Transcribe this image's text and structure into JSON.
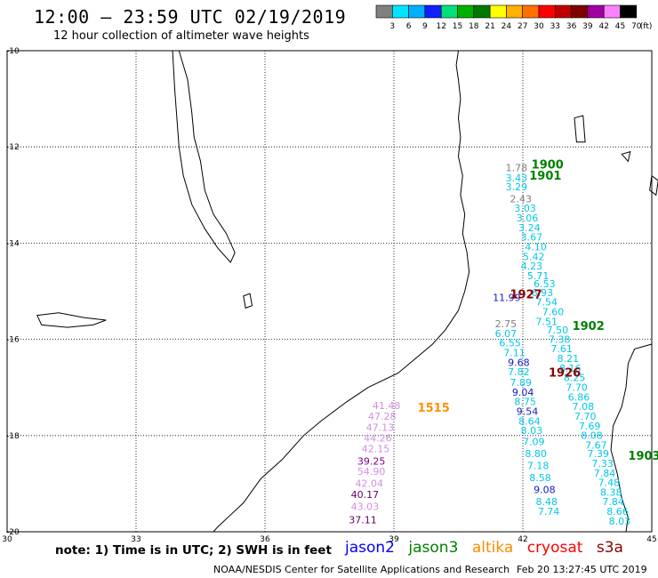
{
  "header": {
    "title": "12:00 – 23:59 UTC 02/19/2019",
    "subtitle": "12 hour collection of altimeter wave heights"
  },
  "colorbar": {
    "unit_label": "(ft)",
    "ticks": [
      "3",
      "6",
      "9",
      "12",
      "15",
      "18",
      "21",
      "24",
      "27",
      "30",
      "33",
      "36",
      "39",
      "42",
      "45",
      "70"
    ],
    "colors": [
      "#808080",
      "#00e5ff",
      "#00b0ff",
      "#1020ff",
      "#00e07a",
      "#00b000",
      "#007800",
      "#ffff00",
      "#ffb000",
      "#ff7000",
      "#ff0000",
      "#c00000",
      "#800000",
      "#a000a0",
      "#ff80ff",
      "#000000"
    ]
  },
  "axes": {
    "lat_labels": [
      "-10",
      "-12",
      "-14",
      "-16",
      "-18",
      "-20"
    ],
    "lon_labels": [
      "30",
      "33",
      "36",
      "39",
      "42",
      "45"
    ]
  },
  "tracks": [
    {
      "id": "track-1900-1901",
      "color": "#00c0e0",
      "values": [
        "1.78",
        "3.43",
        "3.29",
        "2.43",
        "3.03",
        "3.06",
        "3.24",
        "3.67",
        "4.10",
        "5.42",
        "4.23",
        "5.71",
        "6.53",
        "6.93",
        "7.54",
        "7.60",
        "7.51",
        "7.50",
        "7.38",
        "7.61",
        "8.21",
        "8.16",
        "8.25",
        "7.70",
        "6.86",
        "7.08",
        "7.70",
        "7.69",
        "8.08",
        "7.67",
        "7.39",
        "7.33",
        "7.84",
        "7.48",
        "8.38",
        "7.84",
        "8.66",
        "8.03"
      ]
    },
    {
      "id": "track-1927-1926",
      "color": "#1020c0",
      "values": [
        "11.99",
        "2.75",
        "6.07",
        "6.55",
        "7.11",
        "9.68",
        "7.82",
        "7.89",
        "9.04",
        "8.75",
        "9.54",
        "8.64",
        "8.03",
        "7.09",
        "8.80",
        "7.18",
        "8.58",
        "9.08",
        "8.48",
        "7.74"
      ]
    },
    {
      "id": "track-1515",
      "color": "#c080e0",
      "values": [
        "41.48",
        "47.28",
        "47.13",
        "44.26",
        "42.15",
        "39.25",
        "54.90",
        "42.04",
        "40.17",
        "43.03",
        "37.11"
      ]
    }
  ],
  "point_labels": [
    {
      "text": "1.78",
      "color": "#808080",
      "lon": 41.6,
      "lat": -12.5
    },
    {
      "text": "3.43",
      "color": "#00c8e8",
      "lon": 41.6,
      "lat": -12.72
    },
    {
      "text": "3.29",
      "color": "#00c8e8",
      "lon": 41.6,
      "lat": -12.9
    },
    {
      "text": "2.43",
      "color": "#808080",
      "lon": 41.7,
      "lat": -13.15
    },
    {
      "text": "3.03",
      "color": "#00c8e8",
      "lon": 41.8,
      "lat": -13.35
    },
    {
      "text": "3.06",
      "color": "#00c8e8",
      "lon": 41.85,
      "lat": -13.55
    },
    {
      "text": "3.24",
      "color": "#00c8e8",
      "lon": 41.9,
      "lat": -13.75
    },
    {
      "text": "3.67",
      "color": "#00c8e8",
      "lon": 41.95,
      "lat": -13.95
    },
    {
      "text": "4.10",
      "color": "#00c8e8",
      "lon": 42.05,
      "lat": -14.15
    },
    {
      "text": "5.42",
      "color": "#00c8e8",
      "lon": 42.0,
      "lat": -14.35
    },
    {
      "text": "4.23",
      "color": "#00c8e8",
      "lon": 41.95,
      "lat": -14.55
    },
    {
      "text": "5.71",
      "color": "#00c8e8",
      "lon": 42.1,
      "lat": -14.75
    },
    {
      "text": "6.53",
      "color": "#00c8e8",
      "lon": 42.25,
      "lat": -14.92
    },
    {
      "text": "6.93",
      "color": "#00c8e8",
      "lon": 42.2,
      "lat": -15.1
    },
    {
      "text": "7.54",
      "color": "#00c8e8",
      "lon": 42.3,
      "lat": -15.3
    },
    {
      "text": "7.60",
      "color": "#00c8e8",
      "lon": 42.45,
      "lat": -15.5
    },
    {
      "text": "7.51",
      "color": "#00c8e8",
      "lon": 42.3,
      "lat": -15.7
    },
    {
      "text": "7.50",
      "color": "#00c8e8",
      "lon": 42.55,
      "lat": -15.88
    },
    {
      "text": "7.38",
      "color": "#00c8e8",
      "lon": 42.6,
      "lat": -16.07
    },
    {
      "text": "7.61",
      "color": "#00c8e8",
      "lon": 42.65,
      "lat": -16.27
    },
    {
      "text": "8.21",
      "color": "#00c8e8",
      "lon": 42.8,
      "lat": -16.47
    },
    {
      "text": "8.16",
      "color": "#00c8e8",
      "lon": 42.85,
      "lat": -16.67
    },
    {
      "text": "8.25",
      "color": "#00c8e8",
      "lon": 42.95,
      "lat": -16.87
    },
    {
      "text": "7.70",
      "color": "#00c8e8",
      "lon": 43.0,
      "lat": -17.07
    },
    {
      "text": "6.86",
      "color": "#00c8e8",
      "lon": 43.05,
      "lat": -17.27
    },
    {
      "text": "7.08",
      "color": "#00c8e8",
      "lon": 43.15,
      "lat": -17.47
    },
    {
      "text": "7.70",
      "color": "#00c8e8",
      "lon": 43.2,
      "lat": -17.67
    },
    {
      "text": "7.69",
      "color": "#00c8e8",
      "lon": 43.3,
      "lat": -17.87
    },
    {
      "text": "8.08",
      "color": "#00c8e8",
      "lon": 43.35,
      "lat": -18.07
    },
    {
      "text": "7.67",
      "color": "#00c8e8",
      "lon": 43.45,
      "lat": -18.27
    },
    {
      "text": "7.39",
      "color": "#00c8e8",
      "lon": 43.5,
      "lat": -18.45
    },
    {
      "text": "7.33",
      "color": "#00c8e8",
      "lon": 43.6,
      "lat": -18.65
    },
    {
      "text": "7.84",
      "color": "#00c8e8",
      "lon": 43.65,
      "lat": -18.85
    },
    {
      "text": "7.48",
      "color": "#00c8e8",
      "lon": 43.75,
      "lat": -19.05
    },
    {
      "text": "8.38",
      "color": "#00c8e8",
      "lon": 43.8,
      "lat": -19.25
    },
    {
      "text": "7.84",
      "color": "#00c8e8",
      "lon": 43.85,
      "lat": -19.45
    },
    {
      "text": "8.66",
      "color": "#00c8e8",
      "lon": 43.95,
      "lat": -19.65
    },
    {
      "text": "8.03",
      "color": "#00c8e8",
      "lon": 44.0,
      "lat": -19.85
    },
    {
      "text": "11.99",
      "color": "#1020c0",
      "lon": 41.3,
      "lat": -15.2
    },
    {
      "text": "2.75",
      "color": "#808080",
      "lon": 41.35,
      "lat": -15.75
    },
    {
      "text": "6.07",
      "color": "#00c8e8",
      "lon": 41.35,
      "lat": -15.95
    },
    {
      "text": "6.55",
      "color": "#00c8e8",
      "lon": 41.45,
      "lat": -16.15
    },
    {
      "text": "7.11",
      "color": "#00c8e8",
      "lon": 41.55,
      "lat": -16.35
    },
    {
      "text": "9.68",
      "color": "#1020c0",
      "lon": 41.65,
      "lat": -16.55
    },
    {
      "text": "7.82",
      "color": "#00c8e8",
      "lon": 41.65,
      "lat": -16.75
    },
    {
      "text": "7.89",
      "color": "#00c8e8",
      "lon": 41.7,
      "lat": -16.97
    },
    {
      "text": "9.04",
      "color": "#1020c0",
      "lon": 41.75,
      "lat": -17.17
    },
    {
      "text": "8.75",
      "color": "#00c8e8",
      "lon": 41.8,
      "lat": -17.37
    },
    {
      "text": "9.54",
      "color": "#1020c0",
      "lon": 41.85,
      "lat": -17.57
    },
    {
      "text": "8.64",
      "color": "#00c8e8",
      "lon": 41.9,
      "lat": -17.77
    },
    {
      "text": "8.03",
      "color": "#00c8e8",
      "lon": 41.95,
      "lat": -17.97
    },
    {
      "text": "7.09",
      "color": "#00c8e8",
      "lon": 42.0,
      "lat": -18.2
    },
    {
      "text": "8.80",
      "color": "#00c8e8",
      "lon": 42.05,
      "lat": -18.45
    },
    {
      "text": "7.18",
      "color": "#00c8e8",
      "lon": 42.1,
      "lat": -18.7
    },
    {
      "text": "8.58",
      "color": "#00c8e8",
      "lon": 42.15,
      "lat": -18.95
    },
    {
      "text": "9.08",
      "color": "#1020c0",
      "lon": 42.25,
      "lat": -19.2
    },
    {
      "text": "8.48",
      "color": "#00c8e8",
      "lon": 42.3,
      "lat": -19.45
    },
    {
      "text": "7.74",
      "color": "#00c8e8",
      "lon": 42.35,
      "lat": -19.65
    },
    {
      "text": "41.48",
      "color": "#d090e0",
      "lon": 38.5,
      "lat": -17.45
    },
    {
      "text": "47.28",
      "color": "#d090e0",
      "lon": 38.4,
      "lat": -17.67
    },
    {
      "text": "47.13",
      "color": "#d090e0",
      "lon": 38.35,
      "lat": -17.9
    },
    {
      "text": "44.26",
      "color": "#d090e0",
      "lon": 38.3,
      "lat": -18.12
    },
    {
      "text": "42.15",
      "color": "#d090e0",
      "lon": 38.25,
      "lat": -18.35
    },
    {
      "text": "39.25",
      "color": "#800080",
      "lon": 38.15,
      "lat": -18.6
    },
    {
      "text": "54.90",
      "color": "#d090e0",
      "lon": 38.15,
      "lat": -18.82
    },
    {
      "text": "42.04",
      "color": "#d090e0",
      "lon": 38.1,
      "lat": -19.07
    },
    {
      "text": "40.17",
      "color": "#600060",
      "lon": 38.0,
      "lat": -19.3
    },
    {
      "text": "43.03",
      "color": "#d090e0",
      "lon": 38.0,
      "lat": -19.55
    },
    {
      "text": "37.11",
      "color": "#600060",
      "lon": 37.95,
      "lat": -19.82
    }
  ],
  "time_labels": [
    {
      "text": "1900",
      "color": "#008000",
      "lon": 42.2,
      "lat": -12.45
    },
    {
      "text": "1901",
      "color": "#008000",
      "lon": 42.15,
      "lat": -12.68
    },
    {
      "text": "1927",
      "color": "#8b0000",
      "lon": 41.7,
      "lat": -15.15
    },
    {
      "text": "1902",
      "color": "#008000",
      "lon": 43.15,
      "lat": -15.8
    },
    {
      "text": "1926",
      "color": "#8b0000",
      "lon": 42.6,
      "lat": -16.77
    },
    {
      "text": "1515",
      "color": "#ff9000",
      "lon": 39.55,
      "lat": -17.5
    },
    {
      "text": "1903",
      "color": "#008000",
      "lon": 44.45,
      "lat": -18.5
    }
  ],
  "note": "note: 1) Time is in UTC; 2) SWH is in feet",
  "satellites": [
    {
      "name": "jason2",
      "color": "#0000ff"
    },
    {
      "name": "jason3",
      "color": "#008000"
    },
    {
      "name": "altika",
      "color": "#ff8c00"
    },
    {
      "name": "cryosat",
      "color": "#ff0000"
    },
    {
      "name": "s3a",
      "color": "#8b0000"
    }
  ],
  "footer": {
    "credit": "NOAA/NESDIS Center for Satellite Applications and Research",
    "stamp": "Feb 20 13:27:45 UTC 2019"
  }
}
